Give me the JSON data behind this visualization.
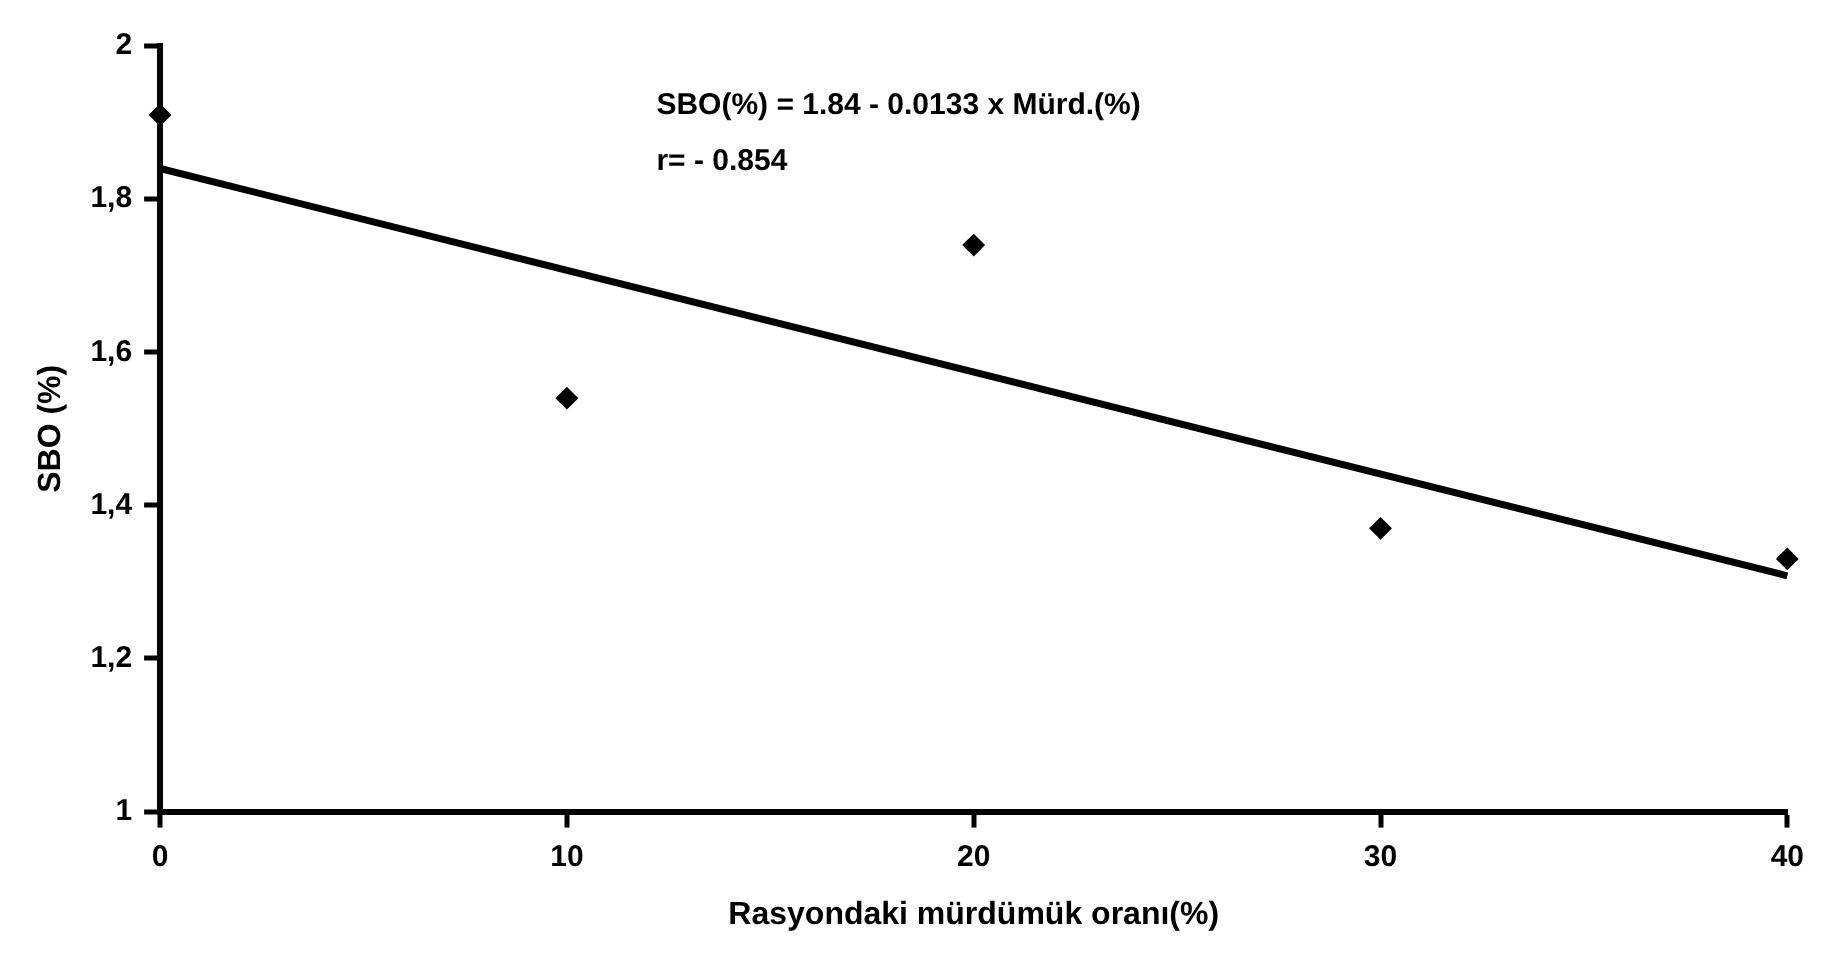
{
  "chart_data": {
    "type": "scatter",
    "xlabel": "Rasyondaki mürdümük oranı(%)",
    "ylabel": "SBO (%)",
    "annotations": [
      "SBO(%) = 1.84 - 0.0133 x Mürd.(%)",
      "r= - 0.854"
    ],
    "x": [
      0,
      10,
      20,
      30,
      40
    ],
    "series": [
      {
        "type": "scatter",
        "color": "#000000",
        "values": [
          1.91,
          1.54,
          1.74,
          1.37,
          1.33
        ]
      },
      {
        "type": "line",
        "color": "#000000",
        "x": [
          0,
          40
        ],
        "values": [
          1.84,
          1.308
        ],
        "marker": "none"
      }
    ],
    "xlim": [
      0,
      40
    ],
    "xticks": [
      0,
      10,
      20,
      30,
      40
    ],
    "ylim": [
      1,
      2
    ],
    "yticks": [
      {
        "value": 1,
        "label": "1"
      },
      {
        "value": 1.2,
        "label": "1,2"
      },
      {
        "value": 1.4,
        "label": "1,4"
      },
      {
        "value": 1.6,
        "label": "1,6"
      },
      {
        "value": 1.8,
        "label": "1,8"
      },
      {
        "value": 2,
        "label": "2"
      }
    ],
    "grid": false,
    "legend": false,
    "marker": "diamond",
    "line_style": "solid"
  }
}
